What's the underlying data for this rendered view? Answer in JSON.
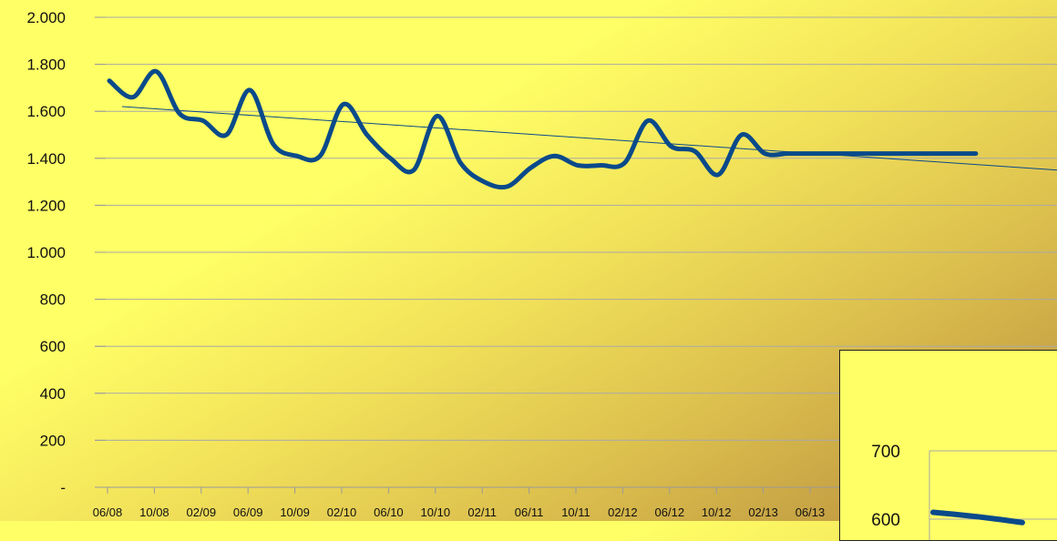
{
  "chart_data": [
    {
      "type": "line",
      "ylim": [
        0,
        2000
      ],
      "y_ticks": [
        "-",
        "200",
        "400",
        "600",
        "800",
        "1.000",
        "1.200",
        "1.400",
        "1.600",
        "1.800",
        "2.000"
      ],
      "x_ticks": [
        "06/08",
        "10/08",
        "02/09",
        "06/09",
        "10/09",
        "02/10",
        "06/10",
        "10/10",
        "02/11",
        "06/11",
        "10/11",
        "02/12",
        "06/12",
        "10/12",
        "02/13",
        "06/13"
      ],
      "grid": true,
      "series": [
        {
          "color": "#0a4a8a",
          "x": [
            "06/08",
            "08/08",
            "10/08",
            "12/08",
            "02/09",
            "04/09",
            "06/09",
            "08/09",
            "10/09",
            "12/09",
            "02/10",
            "04/10",
            "06/10",
            "08/10",
            "10/10",
            "12/10",
            "02/11",
            "04/11",
            "06/11",
            "08/11",
            "10/11",
            "12/11",
            "02/12",
            "04/12",
            "06/12",
            "08/12",
            "10/12",
            "12/12",
            "02/13",
            "04/13",
            "06/13",
            "08/13",
            "10/13",
            "12/13",
            "02/14",
            "04/14",
            "06/14",
            "08/14"
          ],
          "values": [
            1730,
            1660,
            1770,
            1590,
            1560,
            1500,
            1690,
            1460,
            1410,
            1410,
            1630,
            1500,
            1400,
            1350,
            1580,
            1380,
            1300,
            1280,
            1360,
            1410,
            1370,
            1370,
            1380,
            1560,
            1450,
            1430,
            1330,
            1500,
            1420,
            1420,
            1420,
            1420,
            1420,
            1420,
            1420,
            1420,
            1420,
            1420
          ]
        }
      ],
      "trendline": {
        "from": 1620,
        "to": 1350,
        "color": "#0a4a8a"
      }
    },
    {
      "type": "line",
      "y_ticks": [
        "700",
        "600"
      ],
      "series": [
        {
          "color": "#0a4a8a",
          "values": [
            610,
            595
          ]
        }
      ]
    }
  ]
}
